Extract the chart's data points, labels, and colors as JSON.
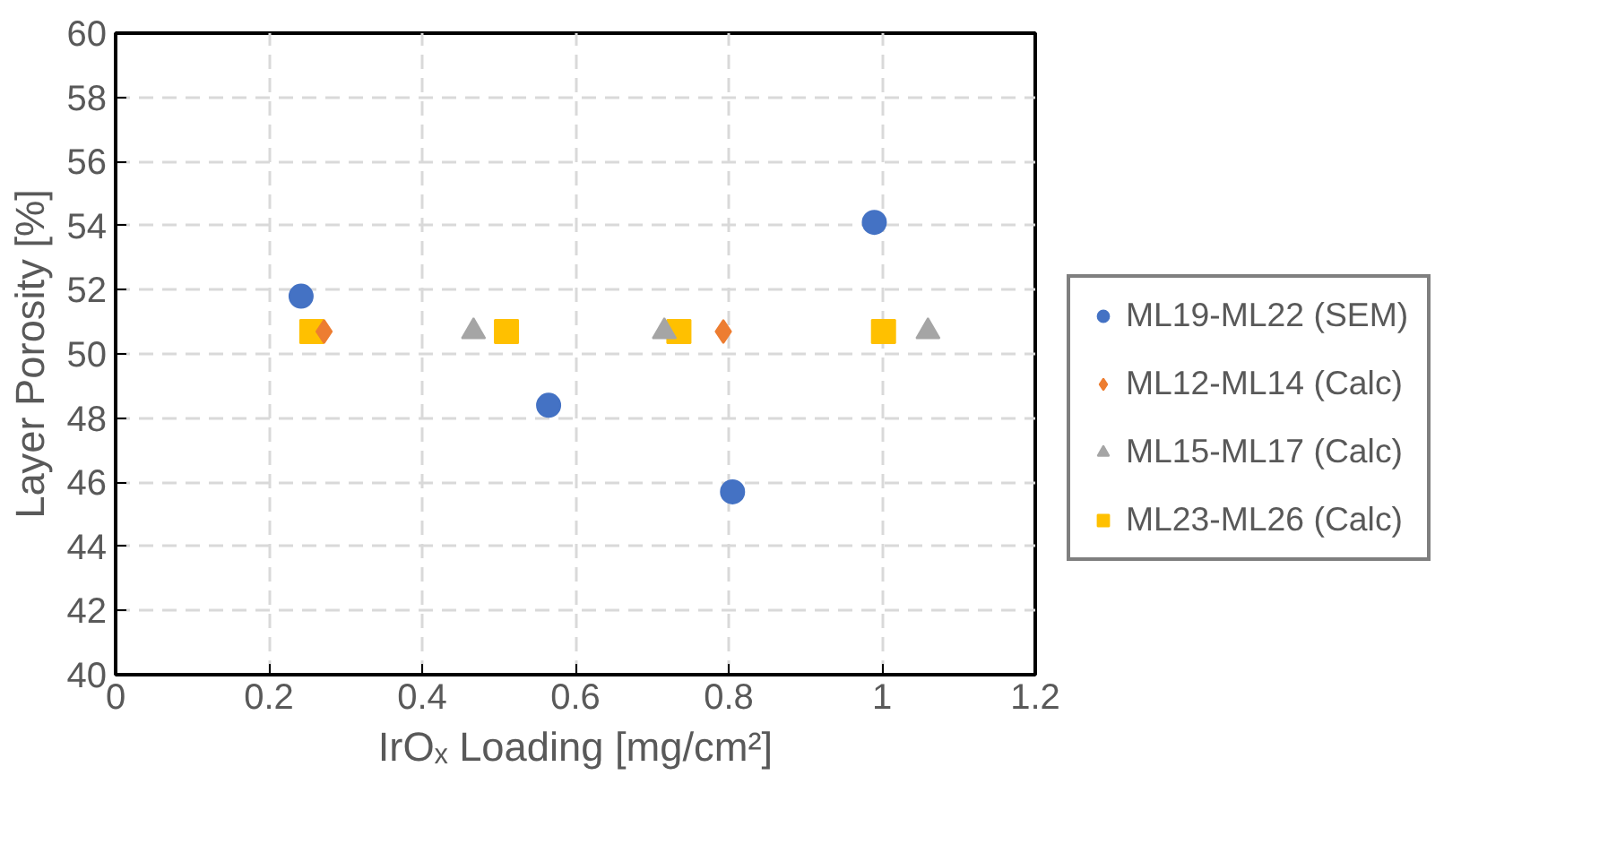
{
  "chart_data": {
    "type": "scatter",
    "xlabel": "IrOₓ Loading [mg/cm²]",
    "ylabel": "Layer Porosity [%]",
    "xlim": [
      0,
      1.2
    ],
    "xticks": [
      0,
      0.2,
      0.4,
      0.6,
      0.8,
      1,
      1.2
    ],
    "ylim": [
      40,
      60
    ],
    "yticks": [
      40,
      42,
      44,
      46,
      48,
      50,
      52,
      54,
      56,
      58,
      60
    ],
    "grid": true,
    "legend": "right",
    "series": [
      {
        "name": "ML19-ML22 (SEM)",
        "color": "#4472c4",
        "marker": "circle",
        "x": [
          0.242,
          0.565,
          0.805,
          0.99
        ],
        "values": [
          51.8,
          48.4,
          45.7,
          54.1
        ]
      },
      {
        "name": "ML12-ML14 (Calc)",
        "color": "#ed7d31",
        "marker": "diamond",
        "x": [
          0.272,
          0.793
        ],
        "values": [
          50.7,
          50.7
        ]
      },
      {
        "name": "ML15-ML17 (Calc)",
        "color": "#a5a5a5",
        "marker": "triangle",
        "x": [
          0.467,
          0.716,
          1.06
        ],
        "values": [
          50.7,
          50.7,
          50.7
        ]
      },
      {
        "name": "ML23-ML26 (Calc)",
        "color": "#ffc000",
        "marker": "square",
        "x": [
          0.256,
          0.51,
          0.735,
          1.002
        ],
        "values": [
          50.7,
          50.7,
          50.7,
          50.7
        ]
      }
    ]
  }
}
